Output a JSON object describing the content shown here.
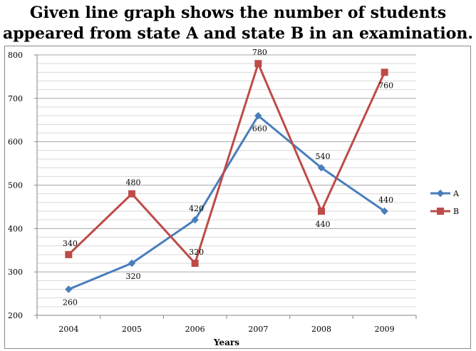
{
  "chart_data": {
    "type": "line",
    "title": "Given line graph shows the number of students appeared from state A and state B in an examination.",
    "title_lines": [
      "Given line graph shows the number of students",
      "appeared from state A and state B in an examination."
    ],
    "xlabel": "Years",
    "ylabel": "",
    "categories": [
      "2004",
      "2005",
      "2006",
      "2007",
      "2008",
      "2009"
    ],
    "ylim": [
      200,
      800
    ],
    "yticks": [
      200,
      300,
      400,
      500,
      600,
      700,
      800
    ],
    "grid": true,
    "legend_position": "right",
    "series": [
      {
        "name": "A",
        "color": "#4a7ebb",
        "marker": "diamond",
        "values": [
          260,
          320,
          420,
          660,
          540,
          440
        ]
      },
      {
        "name": "B",
        "color": "#be4b48",
        "marker": "square",
        "values": [
          340,
          480,
          320,
          780,
          440,
          760
        ]
      }
    ]
  }
}
